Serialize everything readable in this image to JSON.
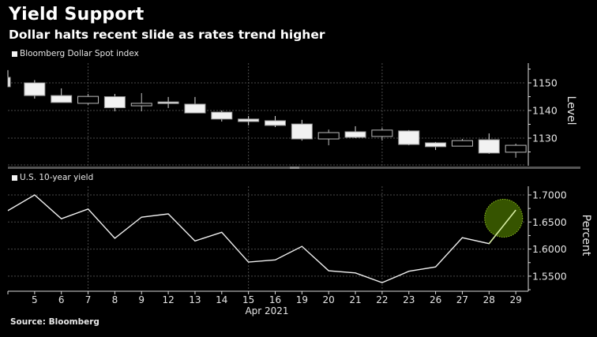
{
  "header": {
    "title": "Yield Support",
    "subtitle": "Dollar halts recent slide as rates trend higher"
  },
  "footer": {
    "source": "Source: Bloomberg"
  },
  "colors": {
    "background": "#000000",
    "foreground": "#ffffff",
    "grid": "#555555",
    "highlight_fill": "#365400",
    "highlight_border": "#8fbf20",
    "highlight_line": "#d8f0a0"
  },
  "chart_data": [
    {
      "type": "candlestick",
      "legend": "Bloomberg Dollar Spot index",
      "ylabel": "Level",
      "ylim": [
        1120,
        1155
      ],
      "yticks": [
        1130,
        1140,
        1150
      ],
      "ytick_labels": [
        "1130",
        "1140",
        "1150"
      ],
      "grid": true,
      "categories": [
        "",
        "5",
        "6",
        "7",
        "8",
        "9",
        "12",
        "13",
        "14",
        "15",
        "16",
        "19",
        "20",
        "21",
        "22",
        "23",
        "26",
        "27",
        "28",
        "29"
      ],
      "open": [
        1152.0,
        1150.0,
        1145.4,
        1142.6,
        1145.0,
        1141.7,
        1143.1,
        1142.3,
        1139.4,
        1136.9,
        1136.3,
        1135.1,
        1129.7,
        1132.3,
        1130.6,
        1132.6,
        1128.3,
        1127.1,
        1129.4,
        1124.9
      ],
      "high": [
        1154.6,
        1151.0,
        1148.0,
        1146.0,
        1146.0,
        1146.3,
        1144.9,
        1144.9,
        1140.0,
        1138.0,
        1138.0,
        1136.6,
        1133.1,
        1134.3,
        1133.7,
        1132.9,
        1128.6,
        1129.7,
        1131.7,
        1128.0
      ],
      "low": [
        1148.6,
        1144.3,
        1142.9,
        1142.0,
        1139.7,
        1139.7,
        1140.9,
        1139.0,
        1136.0,
        1134.6,
        1134.0,
        1129.1,
        1127.4,
        1130.0,
        1129.1,
        1127.4,
        1125.7,
        1127.1,
        1124.3,
        1122.9
      ],
      "close": [
        1148.6,
        1145.4,
        1142.9,
        1145.1,
        1141.0,
        1142.6,
        1142.6,
        1139.1,
        1136.9,
        1136.0,
        1134.6,
        1129.7,
        1132.0,
        1130.3,
        1132.9,
        1127.7,
        1126.9,
        1129.1,
        1124.6,
        1127.4
      ]
    },
    {
      "type": "line",
      "legend": "U.S. 10-year yield",
      "ylabel": "Percent",
      "ylim": [
        1.525,
        1.72
      ],
      "yticks": [
        1.55,
        1.6,
        1.65,
        1.7
      ],
      "ytick_labels": [
        "1.5500",
        "1.6000",
        "1.6500",
        "1.7000"
      ],
      "grid": true,
      "xlabel": "Apr 2021",
      "categories": [
        "",
        "5",
        "6",
        "7",
        "8",
        "9",
        "12",
        "13",
        "14",
        "15",
        "16",
        "19",
        "20",
        "21",
        "22",
        "23",
        "26",
        "27",
        "28",
        "29"
      ],
      "values": [
        1.671,
        1.7,
        1.656,
        1.674,
        1.62,
        1.659,
        1.665,
        1.615,
        1.631,
        1.576,
        1.58,
        1.605,
        1.56,
        1.556,
        1.538,
        1.559,
        1.567,
        1.621,
        1.61,
        1.672
      ],
      "highlight": {
        "category": "29",
        "shape": "circle"
      }
    }
  ]
}
